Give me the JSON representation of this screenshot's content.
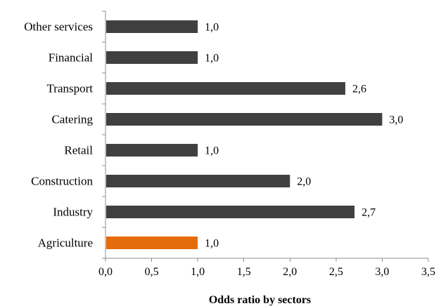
{
  "chart_data": {
    "type": "bar",
    "orientation": "horizontal",
    "title": "",
    "xlabel": "Odds ratio by sectors",
    "ylabel": "",
    "categories": [
      "Agriculture",
      "Industry",
      "Construction",
      "Retail",
      "Catering",
      "Transport",
      "Financial",
      "Other services"
    ],
    "values": [
      1.0,
      2.7,
      2.0,
      1.0,
      3.0,
      2.6,
      1.0,
      1.0
    ],
    "data_labels": [
      "1,0",
      "2,7",
      "2,0",
      "1,0",
      "3,0",
      "2,6",
      "1,0",
      "1,0"
    ],
    "xlim": [
      0,
      3.5
    ],
    "xticks": [
      0,
      0.5,
      1.0,
      1.5,
      2.0,
      2.5,
      3.0,
      3.5
    ],
    "xtick_labels": [
      "0,0",
      "0,5",
      "1,0",
      "1,5",
      "2,0",
      "2,5",
      "3,0",
      "3,5"
    ],
    "grid": false,
    "legend": "none",
    "colors": {
      "default_bar": "#404040",
      "highlight_bar": "#e46c0a"
    },
    "highlight_category": "Agriculture"
  }
}
